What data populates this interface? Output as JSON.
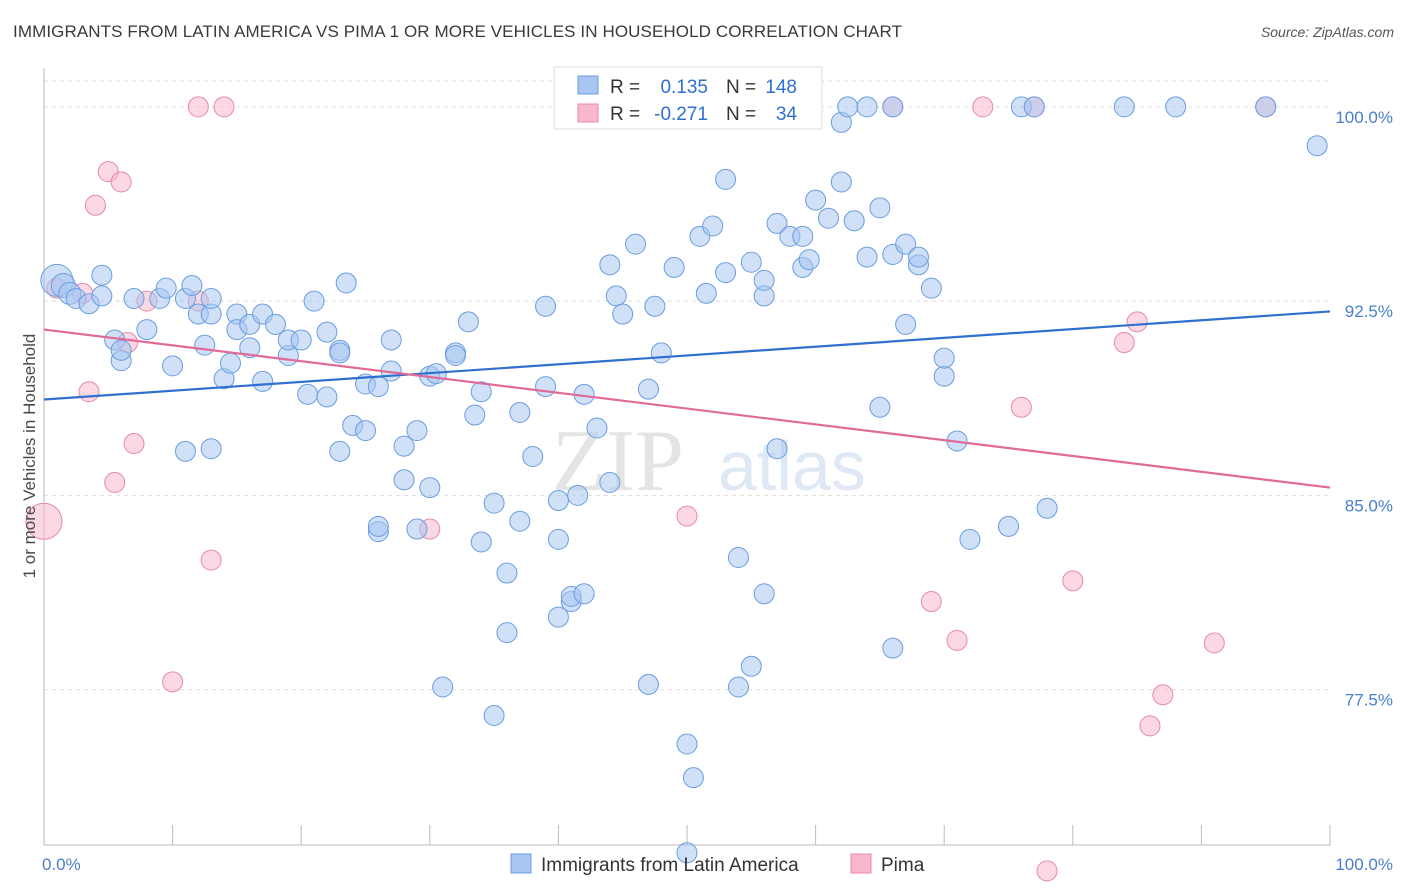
{
  "header": {
    "title": "IMMIGRANTS FROM LATIN AMERICA VS PIMA 1 OR MORE VEHICLES IN HOUSEHOLD CORRELATION CHART",
    "source": "Source: ZipAtlas.com"
  },
  "watermark": {
    "zip": "ZIP",
    "atlas": "atlas"
  },
  "legend": {
    "rows": [
      {
        "r_label": "R =",
        "r_value": "0.135",
        "n_label": "N =",
        "n_value": "148"
      },
      {
        "r_label": "R =",
        "r_value": "-0.271",
        "n_label": "N =",
        "n_value": "34"
      }
    ]
  },
  "colors": {
    "blue_fill": "#a8c6f0",
    "blue_stroke": "#6a9de0",
    "blue_line": "#2f6fcf",
    "pink_fill": "#f7b8cc",
    "pink_stroke": "#e889a8",
    "pink_line": "#e06b98",
    "grid": "#dddddd",
    "tick_text": "#4a7fc9"
  },
  "chart_data": {
    "type": "scatter",
    "title": "IMMIGRANTS FROM LATIN AMERICA VS PIMA 1 OR MORE VEHICLES IN HOUSEHOLD CORRELATION CHART",
    "xlabel": "",
    "ylabel": "1 or more Vehicles in Household",
    "xlim": [
      0,
      100
    ],
    "ylim": [
      71.5,
      101.5
    ],
    "x_tick_labels": [
      "0.0%",
      "100.0%"
    ],
    "y_ticks": [
      77.5,
      85.0,
      92.5,
      100.0
    ],
    "y_tick_labels": [
      "77.5%",
      "85.0%",
      "92.5%",
      "100.0%"
    ],
    "grid": true,
    "legend_position": "top-center",
    "series": [
      {
        "name": "Immigrants from Latin America",
        "color": "#a8c6f0",
        "trend": {
          "x": [
            0,
            100
          ],
          "y": [
            88.7,
            92.1
          ]
        },
        "points": [
          [
            1,
            93.3,
            1.6
          ],
          [
            1.5,
            93.1,
            1.2
          ],
          [
            2,
            92.8,
            1.1
          ],
          [
            2.5,
            92.6,
            1
          ],
          [
            3.5,
            92.4,
            1
          ],
          [
            4.5,
            93.5,
            1
          ],
          [
            4.5,
            92.7,
            1
          ],
          [
            5.5,
            91.0,
            1
          ],
          [
            6,
            90.2,
            1
          ],
          [
            6,
            90.6,
            1
          ],
          [
            7,
            92.6,
            1
          ],
          [
            8,
            91.4,
            1
          ],
          [
            9,
            92.6,
            1
          ],
          [
            9.5,
            93.0,
            1
          ],
          [
            10,
            90.0,
            1
          ],
          [
            11,
            86.7,
            1
          ],
          [
            11,
            92.6,
            1
          ],
          [
            11.5,
            93.1,
            1
          ],
          [
            12,
            92.0,
            1
          ],
          [
            12.5,
            90.8,
            1
          ],
          [
            13,
            92.0,
            1
          ],
          [
            13,
            92.6,
            1
          ],
          [
            13,
            86.8,
            1
          ],
          [
            14,
            89.5,
            1
          ],
          [
            14.5,
            90.1,
            1
          ],
          [
            15,
            92.0,
            1
          ],
          [
            15,
            91.4,
            1
          ],
          [
            16,
            91.6,
            1
          ],
          [
            16,
            90.7,
            1
          ],
          [
            17,
            92.0,
            1
          ],
          [
            17,
            89.4,
            1
          ],
          [
            18,
            91.6,
            1
          ],
          [
            19,
            90.4,
            1
          ],
          [
            19,
            91.0,
            1
          ],
          [
            20,
            91.0,
            1
          ],
          [
            20.5,
            88.9,
            1
          ],
          [
            21,
            92.5,
            1
          ],
          [
            22,
            88.8,
            1
          ],
          [
            22,
            91.3,
            1
          ],
          [
            23,
            86.7,
            1
          ],
          [
            23,
            90.6,
            1
          ],
          [
            23,
            90.5,
            1
          ],
          [
            23.5,
            93.2,
            1
          ],
          [
            24,
            87.7,
            1
          ],
          [
            25,
            87.5,
            1
          ],
          [
            25,
            89.3,
            1
          ],
          [
            26,
            83.6,
            1
          ],
          [
            26,
            89.2,
            1
          ],
          [
            26,
            83.8,
            1
          ],
          [
            27,
            89.8,
            1
          ],
          [
            27,
            91.0,
            1
          ],
          [
            28,
            86.9,
            1
          ],
          [
            28,
            85.6,
            1
          ],
          [
            29,
            87.5,
            1
          ],
          [
            29,
            83.7,
            1
          ],
          [
            30,
            85.3,
            1
          ],
          [
            30,
            89.6,
            1
          ],
          [
            30.5,
            89.7,
            1
          ],
          [
            31,
            77.6,
            1
          ],
          [
            32,
            90.5,
            1
          ],
          [
            32,
            90.4,
            1
          ],
          [
            33,
            91.7,
            1
          ],
          [
            33.5,
            88.1,
            1
          ],
          [
            34,
            89.0,
            1
          ],
          [
            34,
            83.2,
            1
          ],
          [
            35,
            76.5,
            1
          ],
          [
            35,
            84.7,
            1
          ],
          [
            36,
            82.0,
            1
          ],
          [
            36,
            79.7,
            1
          ],
          [
            37,
            88.2,
            1
          ],
          [
            37,
            84.0,
            1
          ],
          [
            38,
            86.5,
            1
          ],
          [
            39,
            89.2,
            1
          ],
          [
            39,
            92.3,
            1
          ],
          [
            40,
            83.3,
            1
          ],
          [
            40,
            80.3,
            1
          ],
          [
            40,
            84.8,
            1
          ],
          [
            41,
            80.9,
            1
          ],
          [
            41,
            81.1,
            1
          ],
          [
            41.5,
            85.0,
            1
          ],
          [
            42,
            81.2,
            1
          ],
          [
            42,
            88.9,
            1
          ],
          [
            43,
            87.6,
            1
          ],
          [
            44,
            85.5,
            1
          ],
          [
            44,
            93.9,
            1
          ],
          [
            44.5,
            92.7,
            1
          ],
          [
            45,
            92.0,
            1
          ],
          [
            46,
            94.7,
            1
          ],
          [
            47,
            89.1,
            1
          ],
          [
            47,
            77.7,
            1
          ],
          [
            47.5,
            92.3,
            1
          ],
          [
            48,
            90.5,
            1
          ],
          [
            49,
            93.8,
            1
          ],
          [
            50,
            71.2,
            1
          ],
          [
            50,
            75.4,
            1
          ],
          [
            50.5,
            74.1,
            1
          ],
          [
            51,
            95.0,
            1
          ],
          [
            51.5,
            92.8,
            1
          ],
          [
            52,
            95.4,
            1
          ],
          [
            53,
            97.2,
            1
          ],
          [
            53,
            93.6,
            1
          ],
          [
            54,
            77.6,
            1
          ],
          [
            54,
            82.6,
            1
          ],
          [
            55,
            94.0,
            1
          ],
          [
            55,
            78.4,
            1
          ],
          [
            56,
            92.7,
            1
          ],
          [
            56,
            93.3,
            1
          ],
          [
            56,
            81.2,
            1
          ],
          [
            57,
            95.5,
            1
          ],
          [
            57,
            86.8,
            1
          ],
          [
            58,
            95.0,
            1
          ],
          [
            59,
            95.0,
            1
          ],
          [
            59,
            93.8,
            1
          ],
          [
            59.5,
            94.1,
            1
          ],
          [
            60,
            96.4,
            1
          ],
          [
            61,
            95.7,
            1
          ],
          [
            62,
            97.1,
            1
          ],
          [
            62,
            99.4,
            1
          ],
          [
            62.5,
            100.0,
            1
          ],
          [
            63,
            95.6,
            1
          ],
          [
            64,
            100.0,
            1
          ],
          [
            64,
            94.2,
            1
          ],
          [
            65,
            96.1,
            1
          ],
          [
            65,
            88.4,
            1
          ],
          [
            66,
            100.0,
            1
          ],
          [
            66,
            94.3,
            1
          ],
          [
            66,
            79.1,
            1
          ],
          [
            67,
            94.7,
            1
          ],
          [
            67,
            91.6,
            1
          ],
          [
            68,
            93.9,
            1
          ],
          [
            68,
            94.2,
            1
          ],
          [
            69,
            93.0,
            1
          ],
          [
            70,
            89.6,
            1
          ],
          [
            70,
            90.3,
            1
          ],
          [
            71,
            87.1,
            1
          ],
          [
            72,
            83.3,
            1
          ],
          [
            75,
            83.8,
            1
          ],
          [
            76,
            100.0,
            1
          ],
          [
            77,
            100.0,
            1
          ],
          [
            78,
            84.5,
            1
          ],
          [
            84,
            100.0,
            1
          ],
          [
            88,
            100.0,
            1
          ],
          [
            95,
            100.0,
            1
          ],
          [
            99,
            98.5,
            1
          ]
        ]
      },
      {
        "name": "Pima",
        "color": "#f7b8cc",
        "trend": {
          "x": [
            0,
            100
          ],
          "y": [
            91.4,
            85.3
          ]
        },
        "points": [
          [
            0,
            84.0,
            1.8
          ],
          [
            1,
            93.0,
            1
          ],
          [
            3,
            92.8,
            1
          ],
          [
            3.5,
            89.0,
            1
          ],
          [
            4,
            96.2,
            1
          ],
          [
            5,
            97.5,
            1
          ],
          [
            5.5,
            85.5,
            1
          ],
          [
            6,
            97.1,
            1
          ],
          [
            6.5,
            90.9,
            1
          ],
          [
            7,
            87.0,
            1
          ],
          [
            8,
            92.5,
            1
          ],
          [
            10,
            77.8,
            1
          ],
          [
            12,
            100.0,
            1
          ],
          [
            12,
            92.5,
            1
          ],
          [
            13,
            82.5,
            1
          ],
          [
            14,
            100.0,
            1
          ],
          [
            30,
            83.7,
            1
          ],
          [
            50,
            84.2,
            1
          ],
          [
            66,
            100.0,
            1
          ],
          [
            69,
            80.9,
            1
          ],
          [
            71,
            79.4,
            1
          ],
          [
            73,
            100.0,
            1
          ],
          [
            76,
            88.4,
            1
          ],
          [
            77,
            100.0,
            1
          ],
          [
            78,
            70.5,
            1
          ],
          [
            80,
            81.7,
            1
          ],
          [
            84,
            90.9,
            1
          ],
          [
            85,
            91.7,
            1
          ],
          [
            86,
            76.1,
            1
          ],
          [
            87,
            77.3,
            1
          ],
          [
            91,
            79.3,
            1
          ],
          [
            95,
            100.0,
            1
          ]
        ]
      }
    ]
  },
  "bottom_legend": {
    "items": [
      {
        "label": "Immigrants from Latin America"
      },
      {
        "label": "Pima"
      }
    ]
  }
}
